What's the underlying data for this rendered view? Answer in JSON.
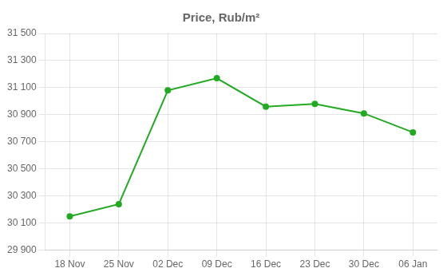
{
  "chart_data": {
    "type": "line",
    "title": "Price, Rub/m²",
    "categories": [
      "18 Nov",
      "25 Nov",
      "02 Dec",
      "09 Dec",
      "16 Dec",
      "23 Dec",
      "30 Dec",
      "06 Jan"
    ],
    "values": [
      30150,
      30240,
      31080,
      31170,
      30960,
      30980,
      30910,
      30770
    ],
    "color": "#22aa22",
    "marker": "circle",
    "ylim": [
      29900,
      31500
    ],
    "yticks": [
      {
        "value": 29900,
        "label": "29 900"
      },
      {
        "value": 30100,
        "label": "30 100"
      },
      {
        "value": 30300,
        "label": "30 300"
      },
      {
        "value": 30500,
        "label": "30 500"
      },
      {
        "value": 30700,
        "label": "30 700"
      },
      {
        "value": 30900,
        "label": "30 900"
      },
      {
        "value": 31100,
        "label": "31 100"
      },
      {
        "value": 31300,
        "label": "31 300"
      },
      {
        "value": 31500,
        "label": "31 500"
      }
    ],
    "grid": true
  }
}
